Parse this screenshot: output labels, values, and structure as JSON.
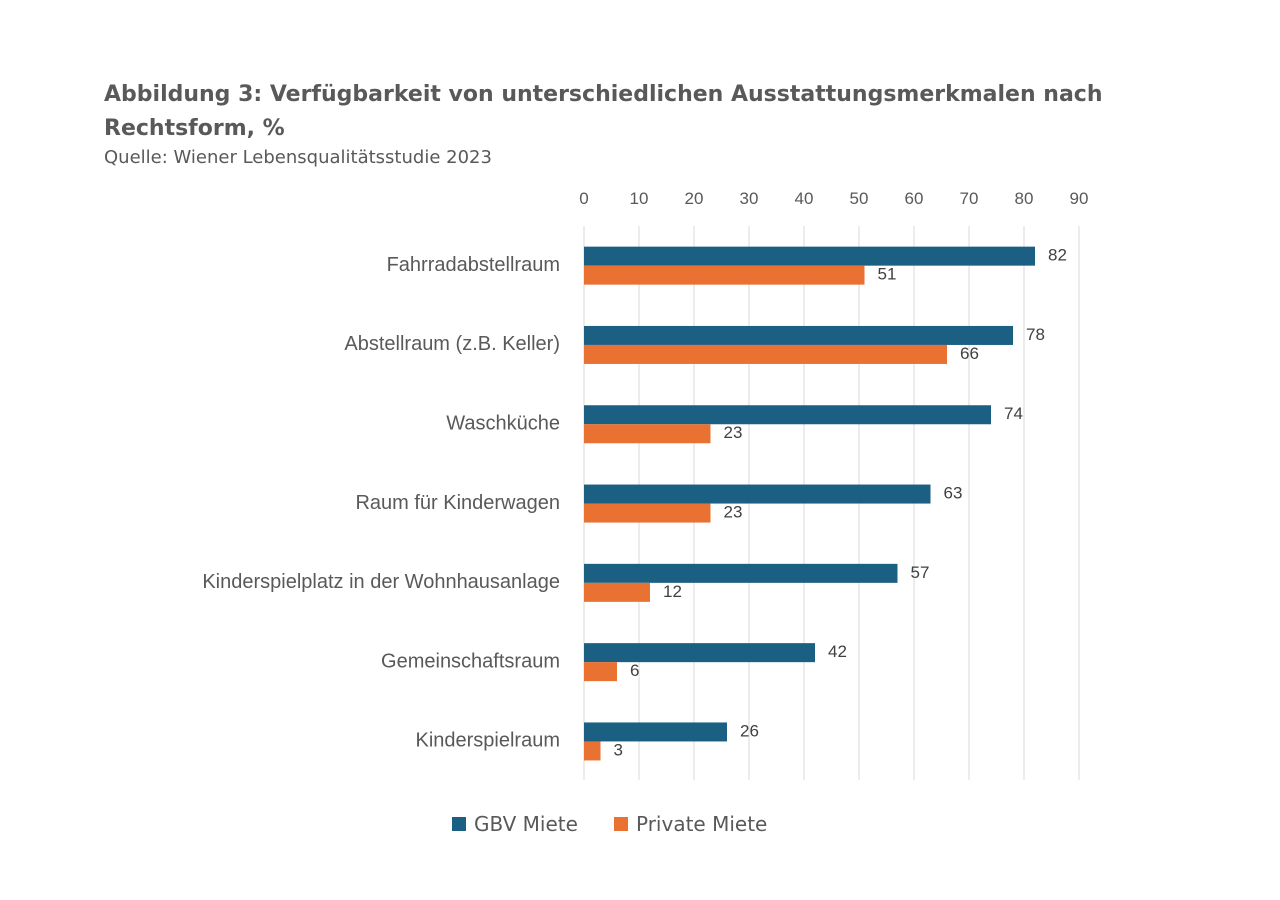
{
  "chart_data": {
    "type": "bar",
    "orientation": "horizontal",
    "title": "Abbildung 3: Verfügbarkeit von unterschiedlichen Ausstattungsmerkmalen nach Rechtsform, %",
    "subtitle": "Quelle: Wiener Lebensqualitätsstudie 2023",
    "categories": [
      "Fahrradabstellraum",
      "Abstellraum (z.B. Keller)",
      "Waschküche",
      "Raum für Kinderwagen",
      "Kinderspielplatz in der Wohnhausanlage",
      "Gemeinschaftsraum",
      "Kinderspielraum"
    ],
    "series": [
      {
        "name": "GBV Miete",
        "color": "#1b5f82",
        "values": [
          82,
          78,
          74,
          63,
          57,
          42,
          26
        ]
      },
      {
        "name": "Private Miete",
        "color": "#e97132",
        "values": [
          51,
          66,
          23,
          23,
          12,
          6,
          3
        ]
      }
    ],
    "xlim": [
      0,
      90
    ],
    "ticks": [
      0,
      10,
      20,
      30,
      40,
      50,
      60,
      70,
      80,
      90
    ],
    "tick_labels": [
      "0",
      "10",
      "20",
      "30",
      "40",
      "50",
      "60",
      "70",
      "80",
      "90"
    ],
    "grid": true,
    "axis_position": "top",
    "legend_position": "bottom"
  }
}
